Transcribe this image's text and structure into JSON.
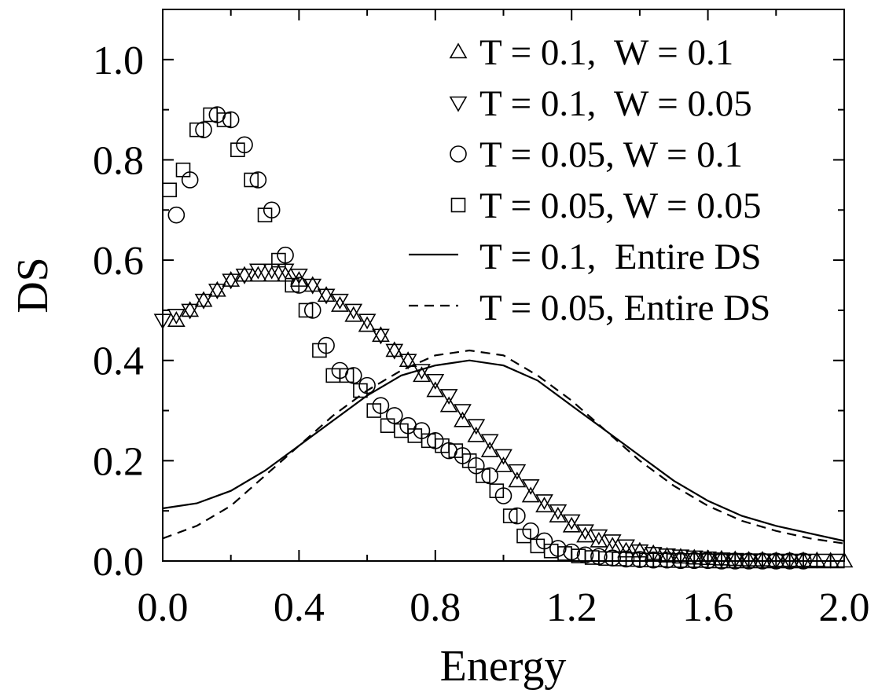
{
  "chart_data": {
    "type": "scatter",
    "xlabel": "Energy",
    "ylabel": "DS",
    "xlim": [
      0,
      2.0
    ],
    "ylim": [
      0,
      1.1
    ],
    "xticks": [
      0.0,
      0.4,
      0.8,
      1.2,
      1.6,
      2.0
    ],
    "xtick_labels": [
      "0.0",
      "0.4",
      "0.8",
      "1.2",
      "1.6",
      "2.0"
    ],
    "yticks": [
      0.0,
      0.2,
      0.4,
      0.6,
      0.8,
      1.0
    ],
    "ytick_labels": [
      "0.0",
      "0.2",
      "0.4",
      "0.6",
      "0.8",
      "1.0"
    ],
    "legend_position": "top-right",
    "grid": false,
    "series": [
      {
        "name": "T = 0.1,  W = 0.1",
        "marker": "triangle-up",
        "x": [
          0.04,
          0.08,
          0.12,
          0.16,
          0.2,
          0.24,
          0.28,
          0.32,
          0.36,
          0.4,
          0.44,
          0.48,
          0.52,
          0.56,
          0.6,
          0.64,
          0.68,
          0.72,
          0.76,
          0.8,
          0.84,
          0.88,
          0.92,
          0.96,
          1.0,
          1.04,
          1.08,
          1.12,
          1.16,
          1.2,
          1.24,
          1.28,
          1.32,
          1.36,
          1.4,
          1.44,
          1.48,
          1.52,
          1.56,
          1.6,
          1.64,
          1.68,
          1.72,
          1.76,
          1.8,
          1.84,
          1.88,
          1.92,
          1.96,
          2.0
        ],
        "y": [
          0.48,
          0.5,
          0.52,
          0.54,
          0.56,
          0.57,
          0.57,
          0.57,
          0.57,
          0.56,
          0.55,
          0.53,
          0.51,
          0.49,
          0.47,
          0.45,
          0.42,
          0.4,
          0.37,
          0.34,
          0.31,
          0.28,
          0.25,
          0.22,
          0.19,
          0.16,
          0.13,
          0.11,
          0.09,
          0.07,
          0.05,
          0.04,
          0.03,
          0.02,
          0.02,
          0.015,
          0.01,
          0.008,
          0.006,
          0.005,
          0.004,
          0.003,
          0.002,
          0.002,
          0.001,
          0.001,
          0.001,
          0.001,
          0.0,
          0.0
        ]
      },
      {
        "name": "T = 0.1,  W = 0.05",
        "marker": "triangle-down",
        "x": [
          0.0,
          0.04,
          0.08,
          0.12,
          0.16,
          0.2,
          0.24,
          0.28,
          0.32,
          0.36,
          0.4,
          0.44,
          0.48,
          0.52,
          0.56,
          0.6,
          0.64,
          0.68,
          0.72,
          0.76,
          0.8,
          0.84,
          0.88,
          0.92,
          0.96,
          1.0,
          1.04,
          1.08,
          1.12,
          1.16,
          1.2,
          1.24,
          1.28,
          1.32,
          1.36,
          1.4,
          1.44,
          1.48,
          1.52,
          1.56,
          1.6,
          1.64,
          1.68,
          1.72,
          1.76,
          1.8,
          1.84,
          1.88
        ],
        "y": [
          0.48,
          0.49,
          0.5,
          0.52,
          0.54,
          0.56,
          0.57,
          0.58,
          0.58,
          0.58,
          0.57,
          0.55,
          0.53,
          0.52,
          0.5,
          0.48,
          0.45,
          0.42,
          0.4,
          0.38,
          0.36,
          0.33,
          0.3,
          0.27,
          0.24,
          0.21,
          0.18,
          0.15,
          0.12,
          0.1,
          0.08,
          0.06,
          0.05,
          0.04,
          0.03,
          0.02,
          0.015,
          0.012,
          0.01,
          0.008,
          0.006,
          0.004,
          0.003,
          0.002,
          0.002,
          0.001,
          0.001,
          0.001
        ]
      },
      {
        "name": "T = 0.05, W = 0.1",
        "marker": "circle",
        "x": [
          0.04,
          0.08,
          0.12,
          0.16,
          0.2,
          0.24,
          0.28,
          0.32,
          0.36,
          0.4,
          0.44,
          0.48,
          0.52,
          0.56,
          0.6,
          0.64,
          0.68,
          0.72,
          0.76,
          0.8,
          0.84,
          0.88,
          0.92,
          0.96,
          1.0,
          1.04,
          1.08,
          1.12,
          1.16,
          1.2,
          1.24,
          1.28,
          1.32,
          1.36,
          1.4,
          1.44,
          1.48,
          1.52,
          1.56,
          1.6,
          1.64,
          1.68,
          1.72,
          1.76,
          1.8,
          1.84,
          1.88
        ],
        "y": [
          0.69,
          0.76,
          0.86,
          0.89,
          0.88,
          0.83,
          0.76,
          0.7,
          0.61,
          0.55,
          0.5,
          0.43,
          0.38,
          0.37,
          0.35,
          0.31,
          0.29,
          0.27,
          0.26,
          0.24,
          0.22,
          0.21,
          0.19,
          0.17,
          0.13,
          0.09,
          0.06,
          0.04,
          0.025,
          0.018,
          0.012,
          0.009,
          0.006,
          0.004,
          0.003,
          0.002,
          0.002,
          0.001,
          0.001,
          0.001,
          0.0,
          0.0,
          0.0,
          0.0,
          0.0,
          0.0,
          0.0
        ]
      },
      {
        "name": "T = 0.05, W = 0.05",
        "marker": "square",
        "x": [
          0.02,
          0.06,
          0.1,
          0.14,
          0.18,
          0.22,
          0.26,
          0.3,
          0.34,
          0.38,
          0.42,
          0.46,
          0.5,
          0.54,
          0.58,
          0.62,
          0.66,
          0.7,
          0.74,
          0.78,
          0.82,
          0.86,
          0.9,
          0.94,
          0.98,
          1.02,
          1.06,
          1.1,
          1.14,
          1.18,
          1.22,
          1.26,
          1.3,
          1.34,
          1.38,
          1.42,
          1.46,
          1.5,
          1.54,
          1.58,
          1.62,
          1.66,
          1.7,
          1.74,
          1.78,
          1.82,
          1.86,
          1.9,
          1.94,
          1.98
        ],
        "y": [
          0.74,
          0.78,
          0.86,
          0.89,
          0.88,
          0.82,
          0.76,
          0.69,
          0.6,
          0.55,
          0.5,
          0.42,
          0.37,
          0.37,
          0.34,
          0.3,
          0.27,
          0.26,
          0.25,
          0.24,
          0.23,
          0.22,
          0.2,
          0.17,
          0.14,
          0.09,
          0.05,
          0.03,
          0.02,
          0.015,
          0.01,
          0.007,
          0.005,
          0.004,
          0.003,
          0.002,
          0.002,
          0.001,
          0.001,
          0.001,
          0.0,
          0.0,
          0.0,
          0.0,
          0.0,
          0.0,
          0.0,
          0.0,
          0.0,
          0.0
        ]
      },
      {
        "name": "T = 0.1,  Entire DS",
        "line_style": "solid",
        "x": [
          0.0,
          0.1,
          0.2,
          0.3,
          0.4,
          0.5,
          0.6,
          0.7,
          0.8,
          0.9,
          1.0,
          1.1,
          1.2,
          1.3,
          1.4,
          1.5,
          1.6,
          1.7,
          1.8,
          1.9,
          2.0
        ],
        "y": [
          0.105,
          0.115,
          0.14,
          0.18,
          0.23,
          0.28,
          0.33,
          0.37,
          0.39,
          0.4,
          0.39,
          0.36,
          0.31,
          0.26,
          0.21,
          0.16,
          0.12,
          0.09,
          0.07,
          0.055,
          0.04
        ]
      },
      {
        "name": "T = 0.05, Entire DS",
        "line_style": "dashed",
        "x": [
          0.0,
          0.1,
          0.2,
          0.3,
          0.4,
          0.5,
          0.6,
          0.7,
          0.8,
          0.9,
          1.0,
          1.1,
          1.2,
          1.3,
          1.4,
          1.5,
          1.6,
          1.7,
          1.8,
          1.9,
          2.0
        ],
        "y": [
          0.045,
          0.07,
          0.11,
          0.17,
          0.23,
          0.29,
          0.34,
          0.38,
          0.41,
          0.42,
          0.41,
          0.37,
          0.32,
          0.26,
          0.2,
          0.15,
          0.11,
          0.08,
          0.06,
          0.045,
          0.035
        ]
      }
    ]
  }
}
